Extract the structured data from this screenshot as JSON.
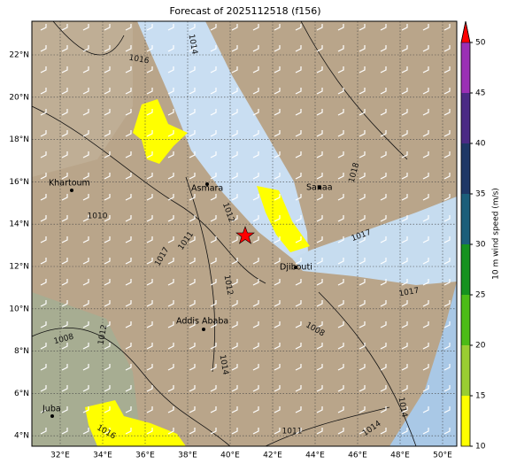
{
  "header": {
    "title": "Forecast of 2025112518 (f156)"
  },
  "map": {
    "lon_labels": [
      "32°E",
      "34°E",
      "36°E",
      "38°E",
      "40°E",
      "42°E",
      "44°E",
      "46°E",
      "48°E",
      "50°E"
    ],
    "lat_labels": [
      "22°N",
      "20°N",
      "18°N",
      "16°N",
      "14°N",
      "12°N",
      "10°N",
      "8°N",
      "6°N",
      "4°N"
    ],
    "cities": [
      "Khartoum",
      "Asmara",
      "Sanaa",
      "Djibouti",
      "Addis Ababa",
      "Juba"
    ],
    "isobar_labels": [
      "1014",
      "1016",
      "1018",
      "1010",
      "1012",
      "1011",
      "1017",
      "1017",
      "1017",
      "1008",
      "1008",
      "1012",
      "1012",
      "1014",
      "1014",
      "1014",
      "1011",
      "1016"
    ]
  },
  "colorbar": {
    "label": "10 m wind speed (m/s)",
    "ticks": [
      10,
      15,
      20,
      25,
      30,
      35,
      40,
      45,
      50
    ],
    "colors": [
      "#ffff00",
      "#9acd32",
      "#4cbb17",
      "#15921f",
      "#1b5e7a",
      "#1e3766",
      "#4b2a85",
      "#9b2fb5"
    ],
    "extend_color": "#ff0000"
  }
}
